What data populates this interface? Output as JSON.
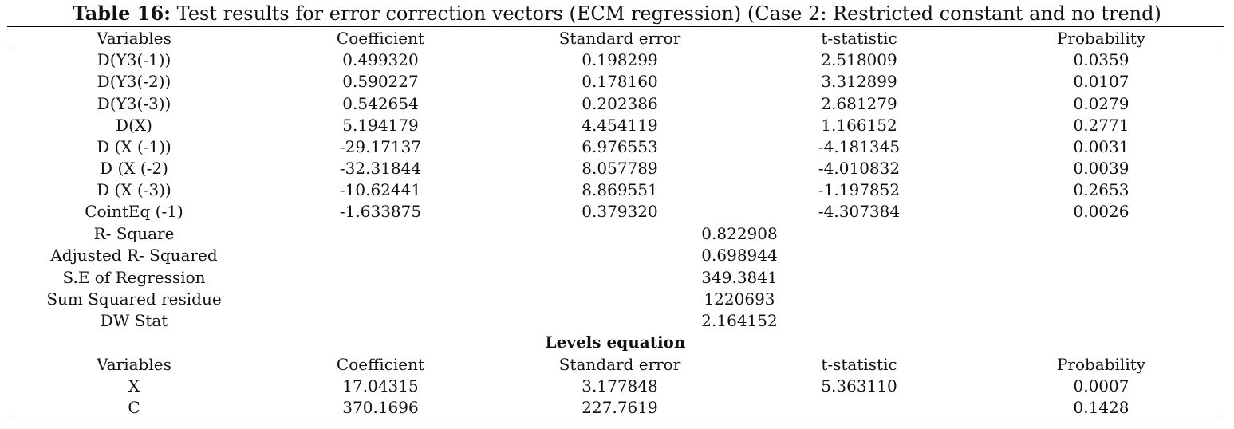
{
  "caption": {
    "label": "Table 16:",
    "text": " Test results for error correction vectors (ECM regression) (Case 2: Restricted constant and no trend)"
  },
  "header": [
    "Variables",
    "Coefficient",
    "Standard error",
    "t-statistic",
    "Probability"
  ],
  "rows": [
    [
      "D(Y3(-1))",
      "0.499320",
      "0.198299",
      "2.518009",
      "0.0359"
    ],
    [
      "D(Y3(-2))",
      "0.590227",
      "0.178160",
      "3.312899",
      "0.0107"
    ],
    [
      "D(Y3(-3))",
      "0.542654",
      "0.202386",
      "2.681279",
      "0.0279"
    ],
    [
      "D(X)",
      "5.194179",
      "4.454119",
      "1.166152",
      "0.2771"
    ],
    [
      "D (X (-1))",
      "-29.17137",
      "6.976553",
      "-4.181345",
      "0.0031"
    ],
    [
      "D (X (-2)",
      "-32.31844",
      "8.057789",
      "-4.010832",
      "0.0039"
    ],
    [
      "D (X (-3))",
      "-10.62441",
      "8.869551",
      "-1.197852",
      "0.2653"
    ],
    [
      "CointEq (-1)",
      "-1.633875",
      "0.379320",
      "-4.307384",
      "0.0026"
    ]
  ],
  "stats": [
    [
      "R- Square",
      "0.822908"
    ],
    [
      "Adjusted R- Squared",
      "0.698944"
    ],
    [
      "S.E of Regression",
      "349.3841"
    ],
    [
      "Sum Squared residue",
      "1220693"
    ],
    [
      "DW Stat",
      "2.164152"
    ]
  ],
  "levels_title": "Levels equation",
  "levels_header": [
    "Variables",
    "Coefficient",
    "Standard error",
    "t-statistic",
    "Probability"
  ],
  "levels_rows": [
    [
      "X",
      "17.04315",
      "3.177848",
      "5.363110",
      "0.0007"
    ],
    [
      "C",
      "370.1696",
      "227.7619",
      "",
      "0.1428"
    ]
  ]
}
